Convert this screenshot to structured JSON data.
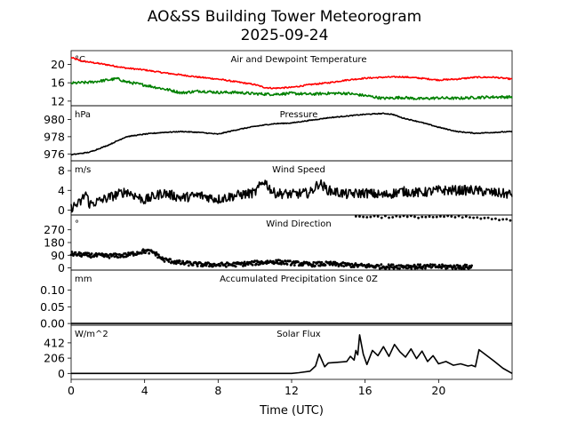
{
  "title": "AO&SS Building Tower Meteorogram",
  "date": "2025-09-24",
  "x_axis": {
    "label": "Time (UTC)",
    "range": [
      0,
      24
    ],
    "ticks": [
      0,
      4,
      8,
      12,
      16,
      20
    ],
    "tick_labels": [
      "0",
      "4",
      "8",
      "12",
      "16",
      "20"
    ]
  },
  "colors": {
    "temperature": "#ff0000",
    "dewpoint": "#008000",
    "other": "#000000"
  },
  "chart_data": [
    {
      "type": "line",
      "id": "temp",
      "title": "Air and Dewpoint Temperature",
      "unit": "°C",
      "ylim": [
        11,
        23
      ],
      "yticks": [
        12,
        16,
        20
      ],
      "ytick_labels": [
        "12",
        "16",
        "20"
      ],
      "series": [
        {
          "name": "Air Temperature",
          "color": "#ff0000",
          "noise": 0.15,
          "x": [
            0,
            0.5,
            1,
            2,
            3,
            4,
            5,
            6,
            7,
            8,
            9,
            10,
            10.5,
            11,
            12,
            13,
            14,
            15,
            16,
            17,
            18,
            19,
            20,
            21,
            22,
            23,
            24
          ],
          "y": [
            21.5,
            20.8,
            20.5,
            19.9,
            19.2,
            18.8,
            18.2,
            17.7,
            17.2,
            16.8,
            16.2,
            15.6,
            15.0,
            14.8,
            15.0,
            15.6,
            16.0,
            16.6,
            17.0,
            17.2,
            17.3,
            17.0,
            16.6,
            16.8,
            17.2,
            17.2,
            16.8
          ]
        },
        {
          "name": "Dewpoint",
          "color": "#008000",
          "noise": 0.3,
          "x": [
            0,
            1,
            2,
            2.5,
            3,
            4,
            5,
            5.5,
            6,
            7,
            8,
            9,
            10,
            11,
            12,
            13,
            14,
            15,
            16,
            17,
            18,
            19,
            20,
            21,
            22,
            23,
            24
          ],
          "y": [
            15.9,
            16.1,
            16.6,
            16.9,
            16.2,
            15.5,
            14.7,
            14.3,
            13.8,
            14.2,
            13.9,
            13.9,
            13.6,
            13.5,
            13.7,
            13.5,
            13.7,
            13.7,
            13.2,
            12.6,
            12.8,
            12.5,
            12.7,
            12.6,
            12.8,
            12.9,
            12.9
          ]
        }
      ]
    },
    {
      "type": "line",
      "id": "pressure",
      "title": "Pressure",
      "unit": "hPa",
      "ylim": [
        975.2,
        981.6
      ],
      "yticks": [
        976,
        978,
        980
      ],
      "ytick_labels": [
        "976",
        "978",
        "980"
      ],
      "series": [
        {
          "name": "Pressure",
          "color": "#000000",
          "noise": 0.05,
          "x": [
            0,
            1,
            2,
            3,
            4,
            5,
            6,
            7,
            8,
            9,
            10,
            11,
            12,
            13,
            14,
            15,
            16,
            17,
            17.5,
            18,
            19,
            20,
            21,
            22,
            23,
            24
          ],
          "y": [
            975.9,
            976.2,
            977.0,
            978.0,
            978.3,
            978.5,
            978.6,
            978.5,
            978.3,
            978.8,
            979.2,
            979.5,
            979.6,
            979.9,
            980.2,
            980.4,
            980.6,
            980.7,
            980.6,
            980.2,
            979.7,
            979.1,
            978.6,
            978.4,
            978.5,
            978.6
          ]
        }
      ]
    },
    {
      "type": "line",
      "id": "wind_speed",
      "title": "Wind Speed",
      "unit": "m/s",
      "ylim": [
        -1,
        10
      ],
      "yticks": [
        0,
        4,
        8
      ],
      "ytick_labels": [
        "0",
        "4",
        "8"
      ],
      "series": [
        {
          "name": "Wind Speed",
          "color": "#000000",
          "noise": 1.0,
          "x": [
            0,
            0.5,
            0.8,
            1,
            1.5,
            2,
            3,
            4,
            5,
            6,
            7,
            8,
            9,
            10,
            10.5,
            11,
            12,
            13,
            13.5,
            14,
            15,
            16,
            17,
            18,
            19,
            20,
            21,
            22,
            23,
            24
          ],
          "y": [
            0.5,
            1.5,
            3.5,
            1.2,
            1.8,
            2.5,
            3.8,
            2.0,
            3.5,
            2.5,
            3.0,
            2.2,
            3.0,
            3.5,
            6.0,
            3.5,
            3.2,
            3.5,
            5.5,
            4.0,
            3.2,
            3.5,
            3.0,
            3.8,
            3.5,
            4.0,
            4.0,
            4.0,
            3.5,
            3.2
          ]
        }
      ]
    },
    {
      "type": "scatter",
      "id": "wind_dir",
      "title": "Wind Direction",
      "unit": "°",
      "ylim": [
        -15,
        375
      ],
      "yticks": [
        0,
        90,
        180,
        270
      ],
      "ytick_labels": [
        "0",
        "90",
        "180",
        "270"
      ],
      "series": [
        {
          "name": "Wind Direction",
          "color": "#000000",
          "noise": 15,
          "start": 0,
          "end": 21.8,
          "x": [
            0,
            1,
            2,
            3,
            4,
            4.5,
            5,
            6,
            6.5,
            7,
            8,
            9,
            10,
            11,
            12,
            13,
            14,
            15,
            15.5,
            16,
            17,
            18,
            19,
            20,
            21,
            21.8
          ],
          "y": [
            100,
            90,
            85,
            90,
            120,
            110,
            60,
            35,
            30,
            25,
            22,
            25,
            35,
            45,
            35,
            25,
            30,
            22,
            18,
            15,
            10,
            12,
            10,
            10,
            8,
            8
          ]
        },
        {
          "name": "Wind Direction (northerly)",
          "color": "#000000",
          "noise": 8,
          "start": 15.5,
          "end": 24,
          "x": [
            15.5,
            18,
            20,
            21.5,
            22,
            24
          ],
          "y": [
            365,
            362,
            362,
            360,
            355,
            335
          ]
        }
      ]
    },
    {
      "type": "line",
      "id": "precip",
      "title": "Accumulated Precipitation Since 0Z",
      "unit": "mm",
      "ylim": [
        -0.005,
        0.16
      ],
      "yticks": [
        0.0,
        0.05,
        0.1
      ],
      "ytick_labels": [
        "0.00",
        "0.05",
        "0.10"
      ],
      "series": [
        {
          "name": "Accumulated Precipitation",
          "color": "#000000",
          "noise": 0,
          "x": [
            0,
            24
          ],
          "y": [
            0,
            0
          ]
        }
      ]
    },
    {
      "type": "line",
      "id": "solar",
      "title": "Solar Flux",
      "unit": "W/m^2",
      "ylim": [
        -80,
        650
      ],
      "yticks": [
        0,
        206,
        412
      ],
      "ytick_labels": [
        "0",
        "206",
        "412"
      ],
      "series": [
        {
          "name": "Solar Flux",
          "color": "#000000",
          "noise": 0,
          "x": [
            0,
            12,
            12.4,
            13,
            13.3,
            13.5,
            13.8,
            14,
            14.5,
            15,
            15.2,
            15.4,
            15.5,
            15.6,
            15.7,
            15.9,
            16.1,
            16.4,
            16.7,
            17,
            17.3,
            17.6,
            17.9,
            18.2,
            18.5,
            18.8,
            19.1,
            19.4,
            19.7,
            20,
            20.4,
            20.8,
            21.2,
            21.6,
            21.8,
            22,
            22.2,
            23,
            23.5,
            24
          ],
          "y": [
            0,
            0,
            10,
            30,
            100,
            260,
            90,
            140,
            150,
            160,
            230,
            180,
            310,
            250,
            520,
            260,
            120,
            310,
            240,
            360,
            230,
            390,
            290,
            220,
            330,
            200,
            300,
            160,
            240,
            130,
            160,
            110,
            130,
            100,
            110,
            90,
            320,
            170,
            70,
            0
          ]
        }
      ]
    }
  ]
}
